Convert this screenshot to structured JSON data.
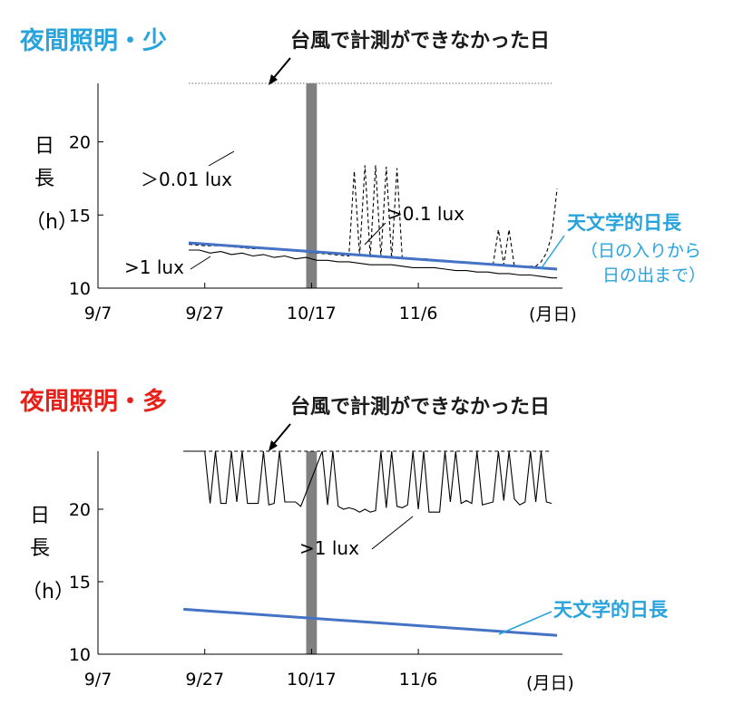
{
  "colors": {
    "title_top": "#29a3dc",
    "title_bottom": "#e8201a",
    "astro_line": "#4472c4",
    "astro_text": "#29a3dc",
    "typhoon_bar": "#808080"
  },
  "chart_data": [
    {
      "type": "line",
      "title": "夜間照明・少",
      "typhoon_label": "台風で計測ができなかった日",
      "typhoon_days": [
        39,
        41
      ],
      "ylabel": [
        "日",
        "長",
        "（h）"
      ],
      "xlabel_unit": "(月日)",
      "x_ticks": [
        "9/7",
        "9/27",
        "10/17",
        "11/6"
      ],
      "x_tick_days": [
        0,
        20,
        40,
        60
      ],
      "y_ticks": [
        "20",
        "15",
        "10"
      ],
      "y_tick_values": [
        20,
        15,
        10
      ],
      "xlim": [
        0,
        87
      ],
      "ylim": [
        10,
        24
      ],
      "series": [
        {
          "name": ">0.01 lux",
          "style": "dotted",
          "x": [
            17,
            18,
            19,
            20,
            21,
            22,
            23,
            24,
            25,
            26,
            27,
            28,
            29,
            30,
            31,
            32,
            33,
            34,
            35,
            36,
            37,
            38,
            39,
            41,
            42,
            43,
            44,
            45,
            46,
            47,
            48,
            49,
            50,
            51,
            52,
            53,
            54,
            55,
            56,
            57,
            58,
            59,
            60,
            61,
            62,
            63,
            64,
            65,
            66,
            67,
            68,
            69,
            70,
            71,
            72,
            73,
            74,
            75,
            76,
            77,
            78,
            79,
            80,
            81,
            82,
            83,
            84,
            85
          ],
          "y": [
            24,
            24,
            24,
            24,
            24,
            24,
            24,
            24,
            24,
            24,
            24,
            24,
            24,
            24,
            24,
            24,
            24,
            24,
            24,
            24,
            24,
            24,
            24,
            24,
            24,
            24,
            24,
            24,
            24,
            24,
            24,
            24,
            24,
            24,
            24,
            24,
            24,
            24,
            24,
            24,
            24,
            24,
            24,
            24,
            24,
            24,
            24,
            24,
            24,
            24,
            24,
            24,
            24,
            24,
            24,
            24,
            24,
            24,
            24,
            24,
            24,
            24,
            24,
            24,
            24,
            24,
            24,
            24
          ]
        },
        {
          "name": ">0.1 lux",
          "style": "dashed",
          "x": [
            17,
            20,
            23,
            26,
            29,
            32,
            35,
            38,
            41,
            44,
            47,
            48,
            49,
            50,
            51,
            52,
            53,
            54,
            55,
            56,
            57,
            58,
            59,
            60,
            61,
            62,
            63,
            64,
            65,
            66,
            67,
            68,
            69,
            70,
            71,
            72,
            73,
            74,
            75,
            76,
            77,
            78,
            79,
            80,
            81,
            82,
            83,
            84,
            85,
            86
          ],
          "y": [
            13.0,
            12.9,
            12.9,
            12.8,
            12.7,
            12.7,
            12.6,
            12.5,
            12.4,
            12.3,
            12.2,
            18.0,
            12.2,
            18.4,
            12.1,
            18.4,
            12.1,
            18.3,
            12.0,
            18.2,
            12.0,
            12.0,
            12.0,
            12.0,
            12.0,
            12.0,
            11.9,
            11.9,
            11.9,
            11.8,
            11.8,
            11.8,
            11.8,
            11.7,
            11.7,
            11.7,
            11.7,
            11.6,
            14.0,
            11.6,
            14.0,
            11.5,
            11.5,
            11.5,
            11.5,
            11.5,
            11.8,
            12.4,
            13.6,
            16.8
          ]
        },
        {
          "name": ">1 lux",
          "style": "solid",
          "x": [
            17,
            19,
            21,
            23,
            25,
            27,
            29,
            31,
            33,
            35,
            37,
            39,
            41,
            43,
            45,
            47,
            49,
            51,
            53,
            55,
            57,
            59,
            61,
            63,
            65,
            67,
            69,
            71,
            73,
            75,
            77,
            79,
            81,
            83,
            85,
            86
          ],
          "y": [
            12.6,
            12.6,
            12.4,
            12.5,
            12.3,
            12.4,
            12.2,
            12.3,
            12.1,
            12.2,
            12.0,
            12.1,
            11.9,
            11.9,
            11.8,
            11.8,
            11.7,
            11.6,
            11.6,
            11.6,
            11.5,
            11.4,
            11.4,
            11.4,
            11.3,
            11.2,
            11.2,
            11.1,
            11.1,
            11.0,
            11.0,
            10.9,
            10.9,
            10.8,
            10.7,
            10.7
          ]
        },
        {
          "name": "天文学的日長",
          "style": "thick",
          "x": [
            17,
            86
          ],
          "y": [
            13.1,
            11.3
          ]
        }
      ],
      "labels": {
        "lux001": "＞0.01 lux",
        "lux01": ">0.1 lux",
        "lux1": ">1 lux",
        "astro": "天文学的日長",
        "astro_sub1": "（日の入りから",
        "astro_sub2": "日の出まで）"
      }
    },
    {
      "type": "line",
      "title": "夜間照明・多",
      "typhoon_label": "台風で計測ができなかった日",
      "typhoon_days": [
        39,
        41
      ],
      "ylabel": [
        "日",
        "長",
        "（h）"
      ],
      "xlabel_unit": "(月日)",
      "x_ticks": [
        "9/7",
        "9/27",
        "10/17",
        "11/6"
      ],
      "x_tick_days": [
        0,
        20,
        40,
        60
      ],
      "y_ticks": [
        "20",
        "15",
        "10"
      ],
      "y_tick_values": [
        20,
        15,
        10
      ],
      "xlim": [
        0,
        87
      ],
      "ylim": [
        10,
        24
      ],
      "series": [
        {
          "name": ">0.1 lux",
          "style": "dashed",
          "x": [
            16,
            38,
            42,
            85
          ],
          "y": [
            24,
            24,
            24,
            24
          ]
        },
        {
          "name": ">1 lux",
          "style": "solid",
          "x": [
            16,
            20,
            21,
            22,
            23,
            24,
            25,
            26,
            27,
            28,
            29,
            30,
            31,
            32,
            33,
            34,
            35,
            36,
            37,
            38,
            42,
            43,
            44,
            45,
            46,
            47,
            48,
            49,
            50,
            51,
            52,
            53,
            54,
            55,
            56,
            57,
            58,
            59,
            60,
            61,
            62,
            63,
            64,
            65,
            66,
            67,
            68,
            69,
            70,
            71,
            72,
            73,
            74,
            75,
            76,
            77,
            78,
            79,
            80,
            81,
            82,
            83,
            84,
            85
          ],
          "y": [
            24,
            24,
            20.4,
            24,
            20.4,
            20.4,
            24,
            20.5,
            24,
            20.4,
            20.4,
            20.4,
            24,
            20.3,
            20.4,
            24,
            20.5,
            20.5,
            20.5,
            20.2,
            24,
            20.3,
            24,
            20.2,
            20.0,
            20.1,
            20.0,
            19.8,
            20.0,
            19.8,
            19.9,
            24,
            20.1,
            24,
            20.2,
            20.1,
            20.3,
            24,
            20.0,
            24,
            19.8,
            19.8,
            19.8,
            24,
            20.5,
            24,
            20.4,
            20.6,
            20.4,
            24,
            20.3,
            20.4,
            20.5,
            24,
            20.6,
            24,
            20.7,
            20.3,
            20.5,
            24,
            20.5,
            24,
            20.5,
            20.4
          ]
        },
        {
          "name": "天文学的日長",
          "style": "thick",
          "x": [
            16,
            86
          ],
          "y": [
            13.1,
            11.3
          ]
        }
      ],
      "labels": {
        "lux1": ">1 lux",
        "astro": "天文学的日長"
      }
    }
  ]
}
